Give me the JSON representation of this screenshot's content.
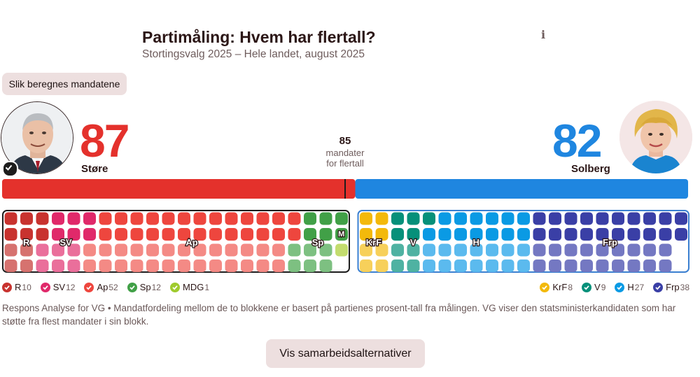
{
  "header": {
    "title": "Partimåling: Hvem har flertall?",
    "subtitle": "Stortingsvalg 2025 – Hele landet, august 2025",
    "info_icon": "info-icon"
  },
  "buttons": {
    "how_label": "Slik beregnes mandatene",
    "alternatives_label": "Vis samarbeidsalternativer"
  },
  "left_bloc": {
    "candidate": "Støre",
    "total": "87",
    "color": "#e4312c"
  },
  "right_bloc": {
    "candidate": "Solberg",
    "total": "82",
    "color": "#1f86e0"
  },
  "majority": {
    "number": "85",
    "label_line1": "mandater",
    "label_line2": "for flertall"
  },
  "chart_data": {
    "type": "bar",
    "title": "Partimåling: Hvem har flertall?",
    "total_seats": 169,
    "majority_threshold": 85,
    "blocs": [
      {
        "name": "Støre",
        "seats": 87,
        "color": "#e4312c"
      },
      {
        "name": "Solberg",
        "seats": 82,
        "color": "#1f86e0"
      }
    ],
    "categories": [
      "R",
      "SV",
      "Ap",
      "Sp",
      "MDG",
      "KrF",
      "V",
      "H",
      "Frp"
    ],
    "values": [
      10,
      12,
      52,
      12,
      1,
      8,
      9,
      27,
      38
    ],
    "parties": [
      {
        "abbr": "R",
        "legend_name": "R",
        "seats": 10,
        "bloc": "left",
        "color": "#c8332f",
        "light": "#d6726f",
        "label": "R"
      },
      {
        "abbr": "SV",
        "legend_name": "SV",
        "seats": 12,
        "bloc": "left",
        "color": "#e0296a",
        "light": "#ea6f9b",
        "label": "SV"
      },
      {
        "abbr": "Ap",
        "legend_name": "Ap",
        "seats": 52,
        "bloc": "left",
        "color": "#ee463e",
        "light": "#f48a85",
        "label": "Ap"
      },
      {
        "abbr": "Sp",
        "legend_name": "Sp",
        "seats": 12,
        "bloc": "left",
        "color": "#41a047",
        "light": "#7dc081",
        "label": "Sp"
      },
      {
        "abbr": "MDG",
        "legend_name": "MDG",
        "seats": 1,
        "bloc": "left",
        "color": "#9fcb2d",
        "light": "#c3dc6e",
        "label": "M"
      },
      {
        "abbr": "KrF",
        "legend_name": "KrF",
        "seats": 8,
        "bloc": "right",
        "color": "#f3b90b",
        "light": "#f7d05a",
        "label": "KrF"
      },
      {
        "abbr": "V",
        "legend_name": "V",
        "seats": 9,
        "bloc": "right",
        "color": "#06907a",
        "light": "#4fb2a2",
        "label": "V"
      },
      {
        "abbr": "H",
        "legend_name": "H",
        "seats": 27,
        "bloc": "right",
        "color": "#0a9ae4",
        "light": "#5bbaee",
        "label": "H"
      },
      {
        "abbr": "Frp",
        "legend_name": "Frp",
        "seats": 38,
        "bloc": "right",
        "color": "#3a3fa6",
        "light": "#7478c2",
        "label": "Frp"
      }
    ]
  },
  "legend_left": [
    {
      "name": "R",
      "count": "10",
      "color": "#c8332f"
    },
    {
      "name": "SV",
      "count": "12",
      "color": "#e0296a"
    },
    {
      "name": "Ap",
      "count": "52",
      "color": "#ee463e"
    },
    {
      "name": "Sp",
      "count": "12",
      "color": "#41a047"
    },
    {
      "name": "MDG",
      "count": "1",
      "color": "#9fcb2d"
    }
  ],
  "legend_right": [
    {
      "name": "KrF",
      "count": "8",
      "color": "#f3b90b"
    },
    {
      "name": "V",
      "count": "9",
      "color": "#06907a"
    },
    {
      "name": "H",
      "count": "27",
      "color": "#0a9ae4"
    },
    {
      "name": "Frp",
      "count": "38",
      "color": "#3a3fa6"
    }
  ],
  "note": "Respons Analyse for VG • Mandatfordeling mellom de to blokkene er basert på partienes prosent-tall fra målingen. VG viser den statsministerkandidaten som har støtte fra flest mandater i sin blokk."
}
